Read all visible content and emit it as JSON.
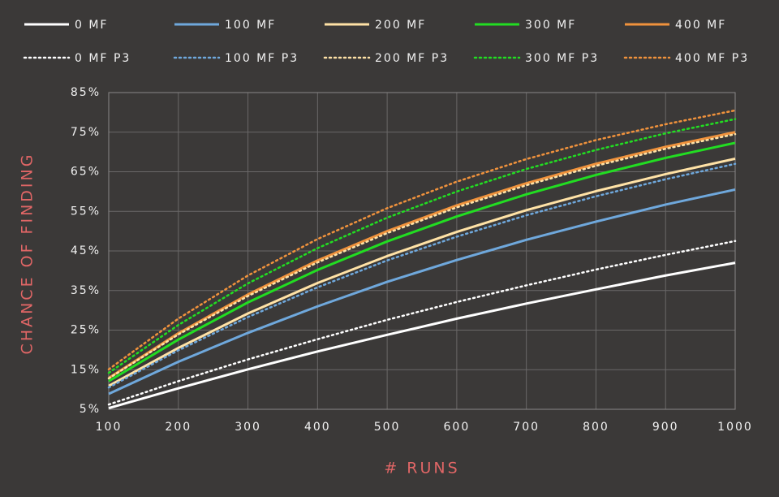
{
  "chart_data": {
    "type": "line",
    "x_label": "# RUNS",
    "y_label": "CHANCE OF FINDING",
    "x": [
      100,
      200,
      300,
      400,
      500,
      600,
      700,
      800,
      900,
      1000
    ],
    "xlim": [
      100,
      1000
    ],
    "xticks": [
      100,
      200,
      300,
      400,
      500,
      600,
      700,
      800,
      900,
      1000
    ],
    "ylim": [
      5,
      85
    ],
    "yticks": [
      {
        "value": 5,
        "label": "5%"
      },
      {
        "value": 15,
        "label": "15%"
      },
      {
        "value": 25,
        "label": "25%"
      },
      {
        "value": 35,
        "label": "35%"
      },
      {
        "value": 45,
        "label": "45%"
      },
      {
        "value": 55,
        "label": "55%"
      },
      {
        "value": 65,
        "label": "65%"
      },
      {
        "value": 75,
        "label": "75%"
      },
      {
        "value": 85,
        "label": "85%"
      }
    ],
    "grid": true,
    "legend": "top",
    "series": [
      {
        "name": "0 MF",
        "color": "#ffffff",
        "style": "solid",
        "values": [
          5.3,
          10.3,
          15.1,
          19.6,
          23.8,
          27.9,
          31.7,
          35.3,
          38.8,
          42.0
        ]
      },
      {
        "name": "100 MF",
        "color": "#6fa8dc",
        "style": "solid",
        "values": [
          8.9,
          17.0,
          24.3,
          31.0,
          37.2,
          42.7,
          47.8,
          52.4,
          56.7,
          60.5
        ]
      },
      {
        "name": "200 MF",
        "color": "#ffe2a6",
        "style": "solid",
        "values": [
          10.9,
          20.5,
          29.2,
          36.9,
          43.7,
          49.8,
          55.3,
          60.1,
          64.4,
          68.3
        ]
      },
      {
        "name": "300 MF",
        "color": "#22dd22",
        "style": "solid",
        "values": [
          12.1,
          22.6,
          32.0,
          40.2,
          47.4,
          53.7,
          59.3,
          64.2,
          68.5,
          72.3
        ]
      },
      {
        "name": "400 MF",
        "color": "#f0923c",
        "style": "solid",
        "values": [
          12.9,
          24.2,
          34.0,
          42.6,
          50.0,
          56.5,
          62.1,
          67.0,
          71.3,
          75.0
        ]
      },
      {
        "name": "0 MF P3",
        "color": "#ffffff",
        "style": "dotted",
        "values": [
          6.2,
          12.1,
          17.6,
          22.7,
          27.6,
          32.1,
          36.3,
          40.3,
          44.0,
          47.5
        ]
      },
      {
        "name": "100 MF P3",
        "color": "#6fa8dc",
        "style": "dotted",
        "values": [
          10.5,
          19.9,
          28.3,
          35.8,
          42.6,
          48.6,
          54.0,
          58.8,
          63.1,
          67.0
        ]
      },
      {
        "name": "200 MF P3",
        "color": "#ffe2a6",
        "style": "dotted",
        "values": [
          12.8,
          23.9,
          33.6,
          42.1,
          49.5,
          56.0,
          61.6,
          66.5,
          70.8,
          74.5
        ]
      },
      {
        "name": "300 MF P3",
        "color": "#22dd22",
        "style": "dotted",
        "values": [
          14.2,
          26.3,
          36.8,
          45.7,
          53.4,
          60.0,
          65.7,
          70.5,
          74.7,
          78.3
        ]
      },
      {
        "name": "400 MF P3",
        "color": "#f0923c",
        "style": "dotted",
        "values": [
          15.1,
          27.9,
          38.8,
          48.0,
          55.8,
          62.5,
          68.2,
          73.0,
          77.0,
          80.5
        ]
      }
    ]
  }
}
